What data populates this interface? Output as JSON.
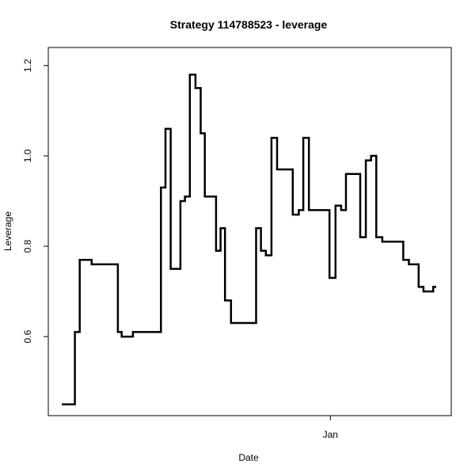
{
  "chart_data": {
    "type": "line",
    "step": true,
    "title": "Strategy 114788523 - leverage",
    "xlabel": "Date",
    "ylabel": "Leverage",
    "ylim": [
      0.425,
      1.24
    ],
    "yticks": [
      0.6,
      0.8,
      1.0,
      1.2
    ],
    "ytick_labels": [
      "0.6",
      "0.8",
      "1.0",
      "1.2"
    ],
    "xticks": [
      {
        "label": "Jan",
        "x": 0.7
      }
    ],
    "grid": false,
    "legend": "none",
    "line_color": "#000000",
    "series": [
      {
        "points": [
          [
            0.0,
            0.45
          ],
          [
            0.035,
            0.61
          ],
          [
            0.048,
            0.77
          ],
          [
            0.08,
            0.76
          ],
          [
            0.15,
            0.61
          ],
          [
            0.16,
            0.6
          ],
          [
            0.19,
            0.61
          ],
          [
            0.265,
            0.93
          ],
          [
            0.277,
            1.06
          ],
          [
            0.291,
            0.75
          ],
          [
            0.317,
            0.9
          ],
          [
            0.329,
            0.91
          ],
          [
            0.342,
            1.18
          ],
          [
            0.357,
            1.15
          ],
          [
            0.371,
            1.05
          ],
          [
            0.382,
            0.91
          ],
          [
            0.412,
            0.79
          ],
          [
            0.424,
            0.84
          ],
          [
            0.436,
            0.68
          ],
          [
            0.452,
            0.63
          ],
          [
            0.519,
            0.84
          ],
          [
            0.532,
            0.79
          ],
          [
            0.545,
            0.78
          ],
          [
            0.56,
            1.04
          ],
          [
            0.575,
            0.97
          ],
          [
            0.617,
            0.87
          ],
          [
            0.633,
            0.88
          ],
          [
            0.645,
            1.04
          ],
          [
            0.66,
            0.88
          ],
          [
            0.715,
            0.73
          ],
          [
            0.731,
            0.89
          ],
          [
            0.746,
            0.88
          ],
          [
            0.759,
            0.96
          ],
          [
            0.797,
            0.82
          ],
          [
            0.812,
            0.99
          ],
          [
            0.826,
            1.0
          ],
          [
            0.84,
            0.82
          ],
          [
            0.856,
            0.81
          ],
          [
            0.912,
            0.77
          ],
          [
            0.927,
            0.76
          ],
          [
            0.953,
            0.71
          ],
          [
            0.966,
            0.7
          ],
          [
            0.992,
            0.71
          ]
        ]
      }
    ]
  }
}
